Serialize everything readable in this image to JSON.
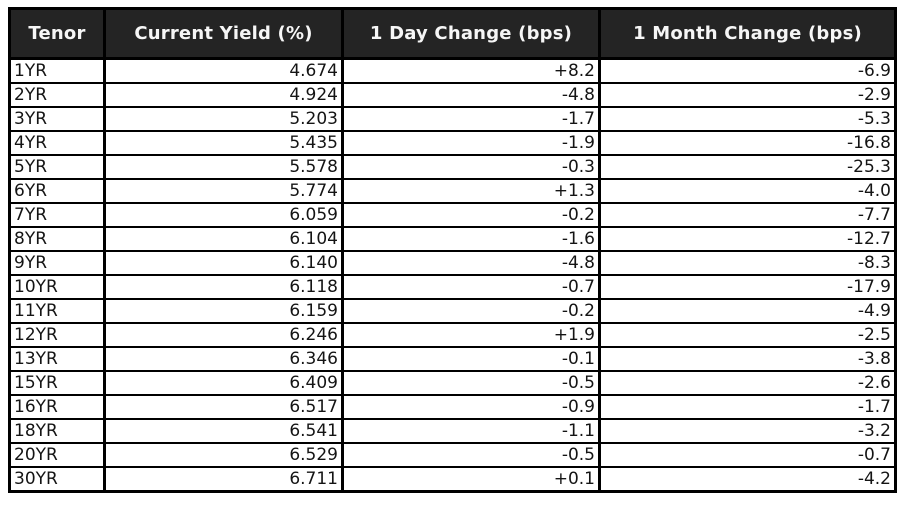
{
  "chart_data": {
    "type": "table",
    "title": "",
    "columns": [
      "Tenor",
      "Current Yield (%)",
      "1 Day Change (bps)",
      "1 Month Change (bps)"
    ],
    "rows": [
      [
        "1YR",
        "4.674",
        "+8.2",
        "-6.9"
      ],
      [
        "2YR",
        "4.924",
        "-4.8",
        "-2.9"
      ],
      [
        "3YR",
        "5.203",
        "-1.7",
        "-5.3"
      ],
      [
        "4YR",
        "5.435",
        "-1.9",
        "-16.8"
      ],
      [
        "5YR",
        "5.578",
        "-0.3",
        "-25.3"
      ],
      [
        "6YR",
        "5.774",
        "+1.3",
        "-4.0"
      ],
      [
        "7YR",
        "6.059",
        "-0.2",
        "-7.7"
      ],
      [
        "8YR",
        "6.104",
        "-1.6",
        "-12.7"
      ],
      [
        "9YR",
        "6.140",
        "-4.8",
        "-8.3"
      ],
      [
        "10YR",
        "6.118",
        "-0.7",
        "-17.9"
      ],
      [
        "11YR",
        "6.159",
        "-0.2",
        "-4.9"
      ],
      [
        "12YR",
        "6.246",
        "+1.9",
        "-2.5"
      ],
      [
        "13YR",
        "6.346",
        "-0.1",
        "-3.8"
      ],
      [
        "15YR",
        "6.409",
        "-0.5",
        "-2.6"
      ],
      [
        "16YR",
        "6.517",
        "-0.9",
        "-1.7"
      ],
      [
        "18YR",
        "6.541",
        "-1.1",
        "-3.2"
      ],
      [
        "20YR",
        "6.529",
        "-0.5",
        "-0.7"
      ],
      [
        "30YR",
        "6.711",
        "+0.1",
        "-4.2"
      ]
    ],
    "layout": {
      "header_position": "top",
      "grid": true,
      "tenor_align": "left",
      "numeric_align": "right"
    }
  },
  "colors": {
    "header_bg": "#242424",
    "header_text": "#f6f6f6",
    "cell_bg": "#ffffff",
    "cell_text": "#141414",
    "border": "#000000",
    "page_bg": "#ffffff"
  }
}
